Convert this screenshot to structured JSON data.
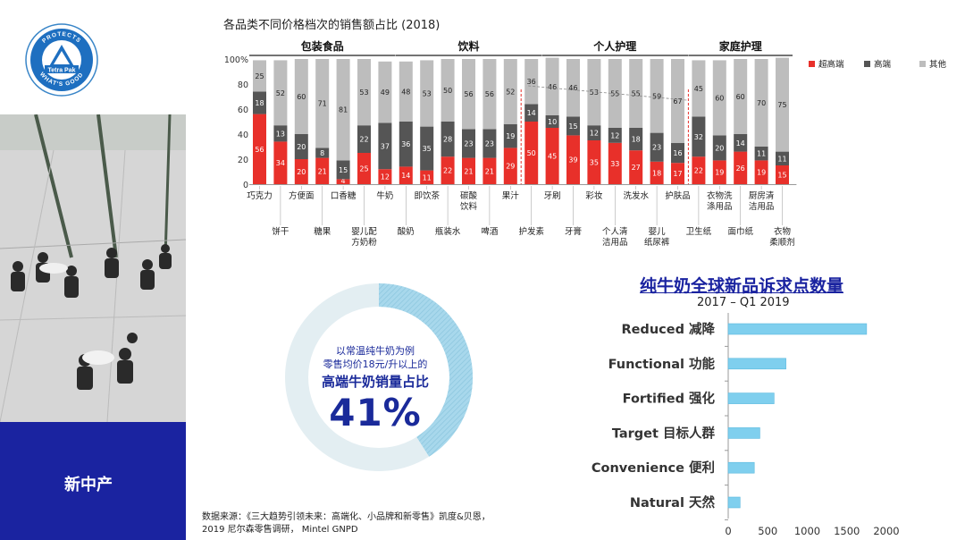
{
  "logo": {
    "brand": "Tetra Pak",
    "tagline_top": "PROTECTS",
    "tagline_bottom": "WHAT'S GOOD"
  },
  "band": {
    "title": "新中产"
  },
  "colors": {
    "super_high": "#e8302a",
    "high": "#555555",
    "other": "#bdbdbd",
    "brand_blue": "#1a23a0",
    "donut_fill": "#a8d8ec",
    "bar_blue": "#7fcfee"
  },
  "source": {
    "line1": "数据来源：《三大趋势引领未来：高端化、小品牌和新零售》凯度&贝恩，",
    "line2": "2019 尼尔森零售调研， Mintel GNPD"
  },
  "donut": {
    "line1": "以常温纯牛奶为例",
    "line2": "零售均价18元/升以上的",
    "line3": "高端牛奶销量占比",
    "pct_label": "41%",
    "value": 41
  },
  "hbar_header": {
    "title": "纯牛奶全球新品诉求点数量",
    "subtitle": "2017 – Q1 2019"
  },
  "chart_data": [
    {
      "type": "bar",
      "title": "各品类不同价格档次的销售额占比 (2018)",
      "stacked": true,
      "ylim": [
        0,
        100
      ],
      "yticks": [
        "0",
        "20",
        "40",
        "60",
        "80",
        "100%"
      ],
      "legend": [
        "超高端",
        "高端",
        "其他"
      ],
      "groups": [
        {
          "name": "包装食品",
          "count": 7
        },
        {
          "name": "饮料",
          "count": 7
        },
        {
          "name": "个人护理",
          "count": 7
        },
        {
          "name": "家庭护理",
          "count": 5
        }
      ],
      "categories": [
        "巧克力",
        "饼干",
        "方便面",
        "糖果",
        "口香糖",
        "婴儿配方奶粉",
        "牛奶",
        "酸奶",
        "即饮茶",
        "瓶装水",
        "碳酸饮料",
        "啤酒",
        "果汁",
        "护发素",
        "牙刷",
        "牙膏",
        "彩妆",
        "个人清洁用品",
        "洗发水",
        "婴儿纸尿裤",
        "护肤品",
        "卫生纸",
        "衣物洗涤用品",
        "面巾纸",
        "厨房清洁用品",
        "衣物柔顺剂"
      ],
      "category_labels_top": [
        "巧克力",
        "",
        "方便面",
        "",
        "口香糖",
        "",
        "牛奶",
        "",
        "即饮茶",
        "",
        "碳酸\n饮料",
        "",
        "果汁",
        "",
        "牙刷",
        "",
        "彩妆",
        "",
        "洗发水",
        "",
        "护肤品",
        "",
        "衣物洗\n涤用品",
        "",
        "厨房清\n洁用品",
        ""
      ],
      "category_labels_bottom": [
        "",
        "饼干",
        "",
        "糖果",
        "",
        "婴儿配\n方奶粉",
        "",
        "酸奶",
        "",
        "瓶装水",
        "",
        "啤酒",
        "",
        "护发素",
        "",
        "牙膏",
        "",
        "个人清\n洁用品",
        "",
        "婴儿\n纸尿裤",
        "",
        "卫生纸",
        "",
        "面巾纸",
        "",
        "衣物\n柔顺剂"
      ],
      "series": [
        {
          "name": "超高端",
          "values": [
            56,
            34,
            20,
            21,
            4,
            25,
            12,
            14,
            11,
            22,
            21,
            21,
            29,
            50,
            45,
            39,
            35,
            33,
            27,
            18,
            17,
            22,
            19,
            26,
            19,
            15
          ]
        },
        {
          "name": "高端",
          "values": [
            18,
            13,
            20,
            8,
            15,
            22,
            37,
            36,
            35,
            28,
            23,
            23,
            19,
            14,
            10,
            15,
            12,
            12,
            18,
            23,
            16,
            32,
            20,
            14,
            11,
            11
          ]
        },
        {
          "name": "其他",
          "values": [
            25,
            52,
            60,
            71,
            81,
            53,
            49,
            48,
            53,
            50,
            56,
            56,
            52,
            36,
            46,
            46,
            53,
            55,
            55,
            59,
            67,
            45,
            60,
            60,
            70,
            75
          ]
        }
      ]
    },
    {
      "type": "bar",
      "orientation": "horizontal",
      "title": "纯牛奶全球新品诉求点数量",
      "subtitle": "2017 – Q1 2019",
      "categories": [
        "Reduced 减降",
        "Functional 功能",
        "Fortified 强化",
        "Target 目标人群",
        "Convenience 便利",
        "Natural 天然"
      ],
      "values": [
        1750,
        730,
        580,
        400,
        330,
        150
      ],
      "xlim": [
        0,
        2000
      ],
      "xticks": [
        "0",
        "500",
        "1000",
        "1500",
        "2000"
      ]
    }
  ]
}
